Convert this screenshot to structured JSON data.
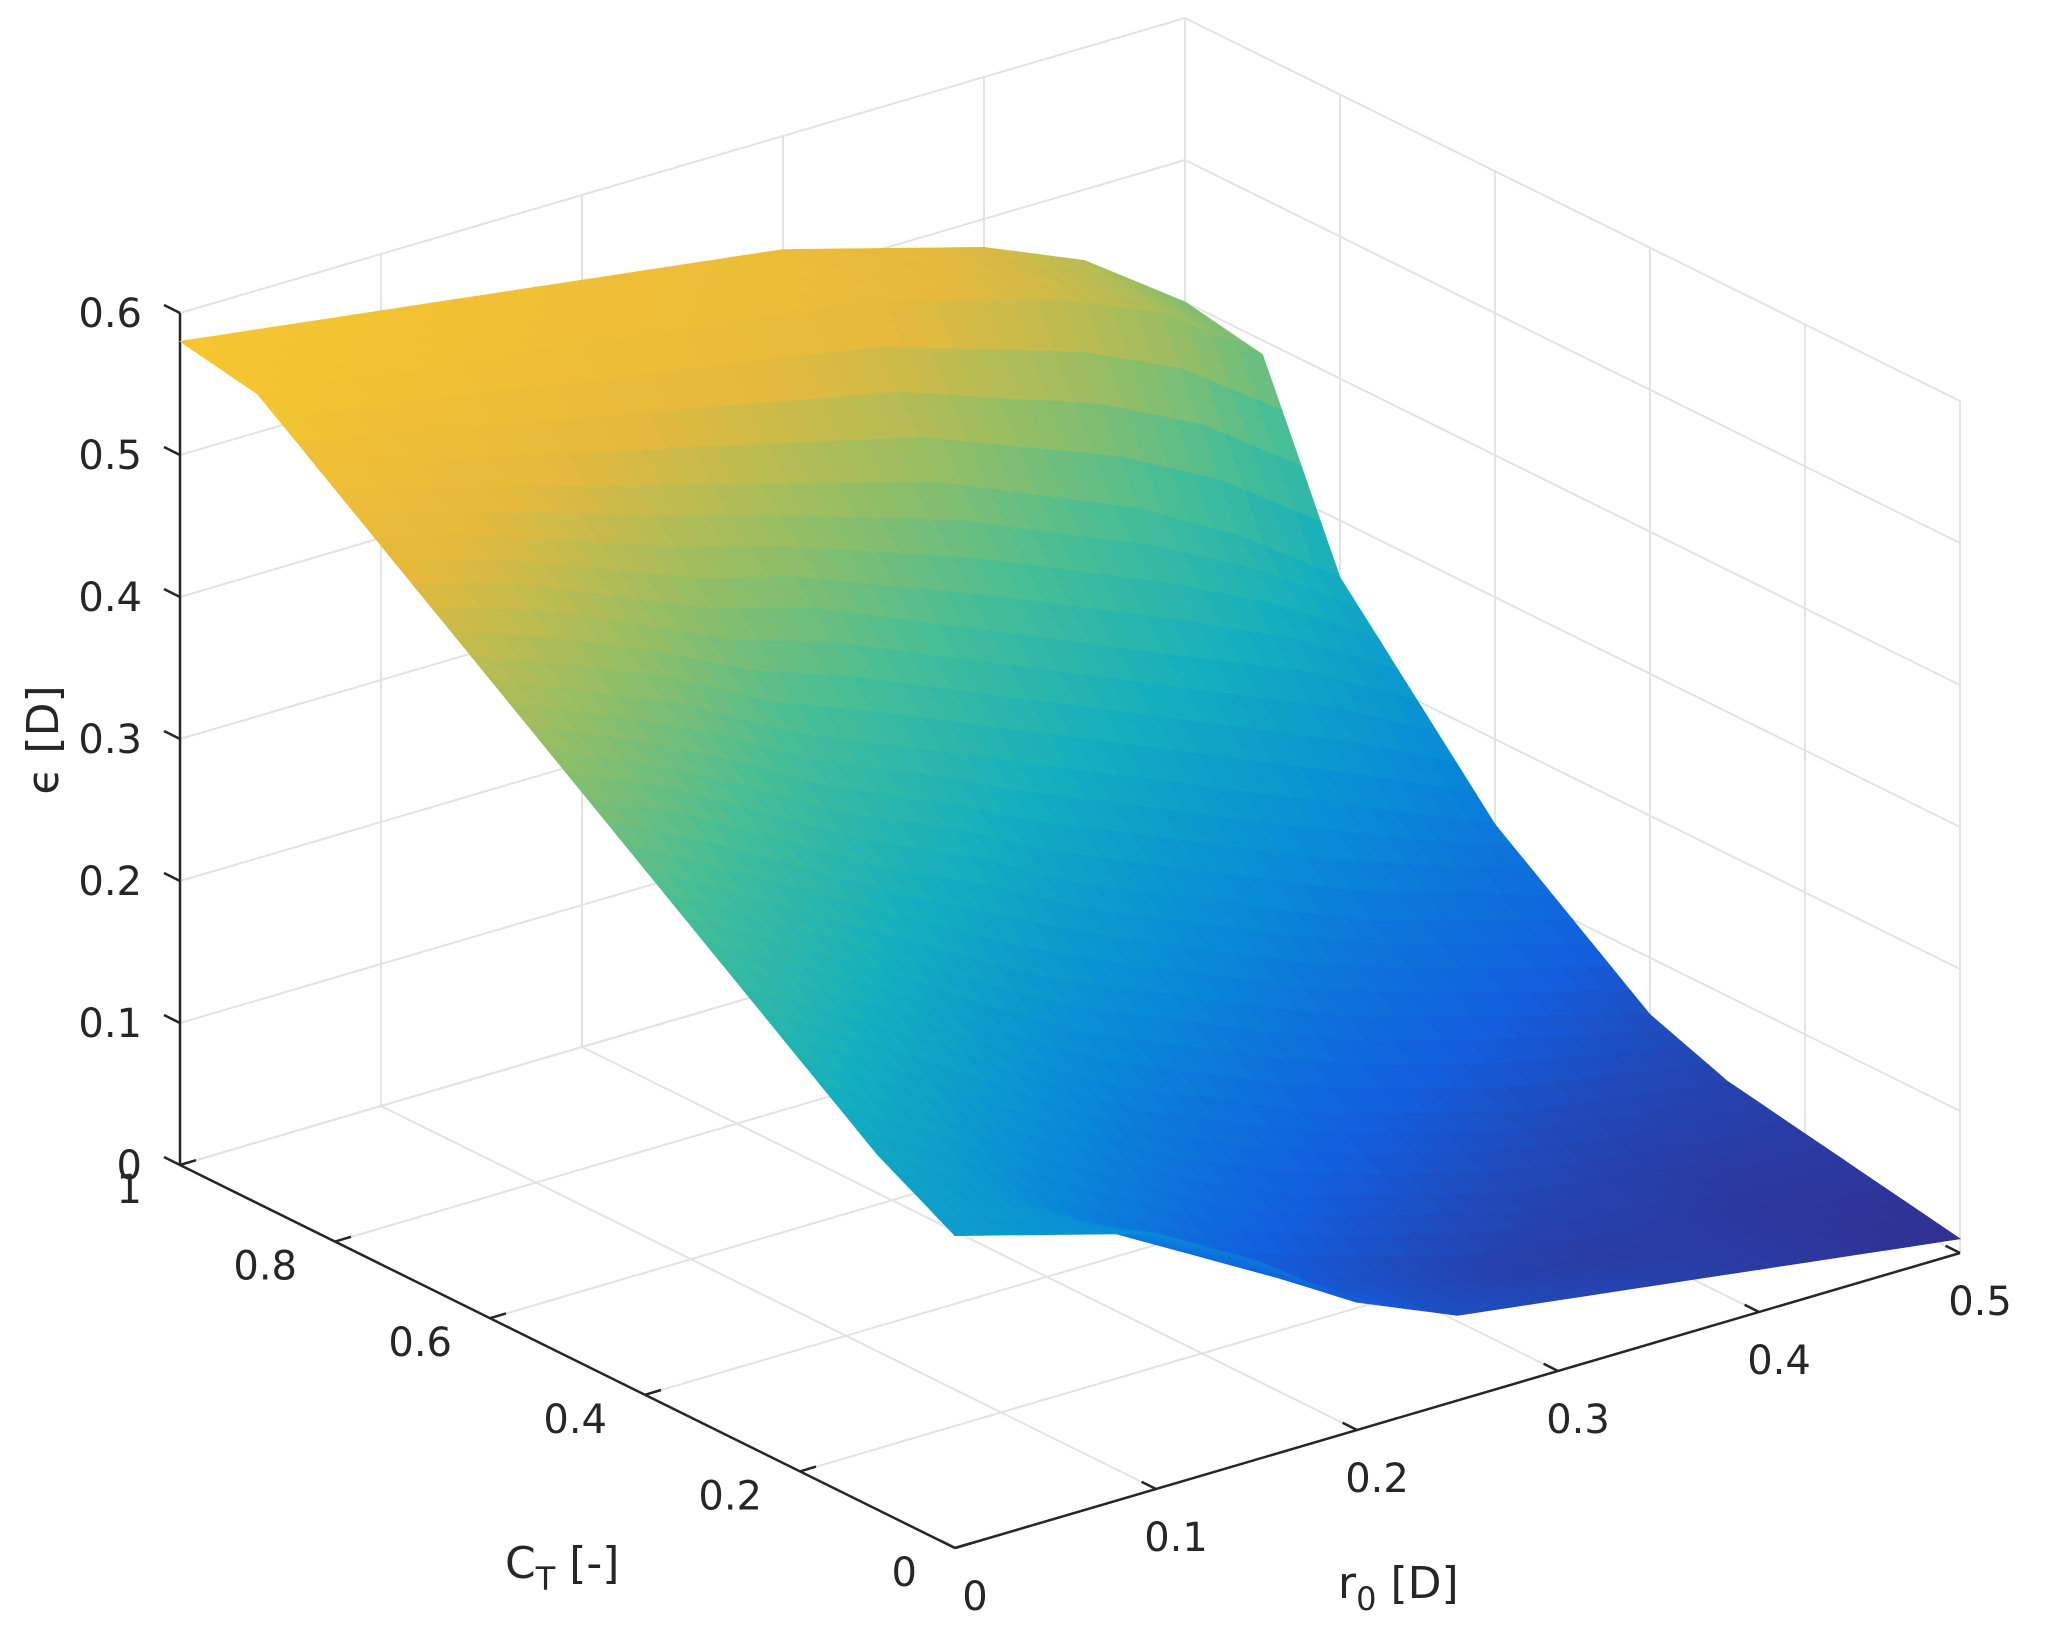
{
  "chart_data": {
    "type": "surface",
    "colormap": "parula",
    "grid": true,
    "x_axis": {
      "ticks": [
        0,
        0.1,
        0.2,
        0.3,
        0.4,
        0.5
      ],
      "tick_labels": [
        "0",
        "0.1",
        "0.2",
        "0.3",
        "0.4",
        "0.5"
      ],
      "range": [
        0,
        0.5
      ],
      "label": {
        "main": "r",
        "sub": "0",
        "rest": " [D]"
      }
    },
    "y_axis": {
      "ticks": [
        0,
        0.2,
        0.4,
        0.6,
        0.8,
        1
      ],
      "tick_labels": [
        "0",
        "0.2",
        "0.4",
        "0.6",
        "0.8",
        "1"
      ],
      "range": [
        0,
        1
      ],
      "label": {
        "main": "C",
        "sub": "T",
        "rest": " [-]"
      }
    },
    "z_axis": {
      "ticks": [
        0,
        0.1,
        0.2,
        0.3,
        0.4,
        0.5,
        0.6
      ],
      "tick_labels": [
        "0",
        "0.1",
        "0.2",
        "0.3",
        "0.4",
        "0.5",
        "0.6"
      ],
      "range": [
        0,
        0.6
      ],
      "label": "ϵ [D]"
    },
    "surface_x": [
      0,
      0.05,
      0.1,
      0.15,
      0.2,
      0.25,
      0.3,
      0.35,
      0.4,
      0.45,
      0.5
    ],
    "surface_y": [
      1.0,
      0.9,
      0.8,
      0.7,
      0.6,
      0.5,
      0.4,
      0.3,
      0.2,
      0.1,
      0.0
    ],
    "surface_z": [
      [
        0.58,
        0.57,
        0.56,
        0.55,
        0.54,
        0.53,
        0.52,
        0.5,
        0.48,
        0.45,
        0.4
      ],
      [
        0.57,
        0.56,
        0.55,
        0.54,
        0.53,
        0.52,
        0.51,
        0.49,
        0.47,
        0.44,
        0.39
      ],
      [
        0.53,
        0.51,
        0.49,
        0.47,
        0.45,
        0.43,
        0.41,
        0.38,
        0.35,
        0.31,
        0.26
      ],
      [
        0.49,
        0.47,
        0.44,
        0.41,
        0.39,
        0.36,
        0.33,
        0.3,
        0.27,
        0.24,
        0.2
      ],
      [
        0.45,
        0.42,
        0.39,
        0.35,
        0.32,
        0.29,
        0.26,
        0.23,
        0.2,
        0.17,
        0.14
      ],
      [
        0.41,
        0.38,
        0.34,
        0.3,
        0.27,
        0.23,
        0.2,
        0.17,
        0.14,
        0.12,
        0.1
      ],
      [
        0.37,
        0.33,
        0.29,
        0.25,
        0.21,
        0.18,
        0.15,
        0.12,
        0.1,
        0.08,
        0.06
      ],
      [
        0.33,
        0.29,
        0.25,
        0.2,
        0.16,
        0.13,
        0.1,
        0.08,
        0.06,
        0.05,
        0.04
      ],
      [
        0.29,
        0.25,
        0.2,
        0.16,
        0.12,
        0.09,
        0.07,
        0.05,
        0.04,
        0.03,
        0.03
      ],
      [
        0.25,
        0.21,
        0.16,
        0.12,
        0.08,
        0.06,
        0.04,
        0.03,
        0.03,
        0.02,
        0.02
      ],
      [
        0.22,
        0.2,
        0.18,
        0.14,
        0.09,
        0.06,
        0.05,
        0.04,
        0.03,
        0.02,
        0.01
      ]
    ]
  }
}
